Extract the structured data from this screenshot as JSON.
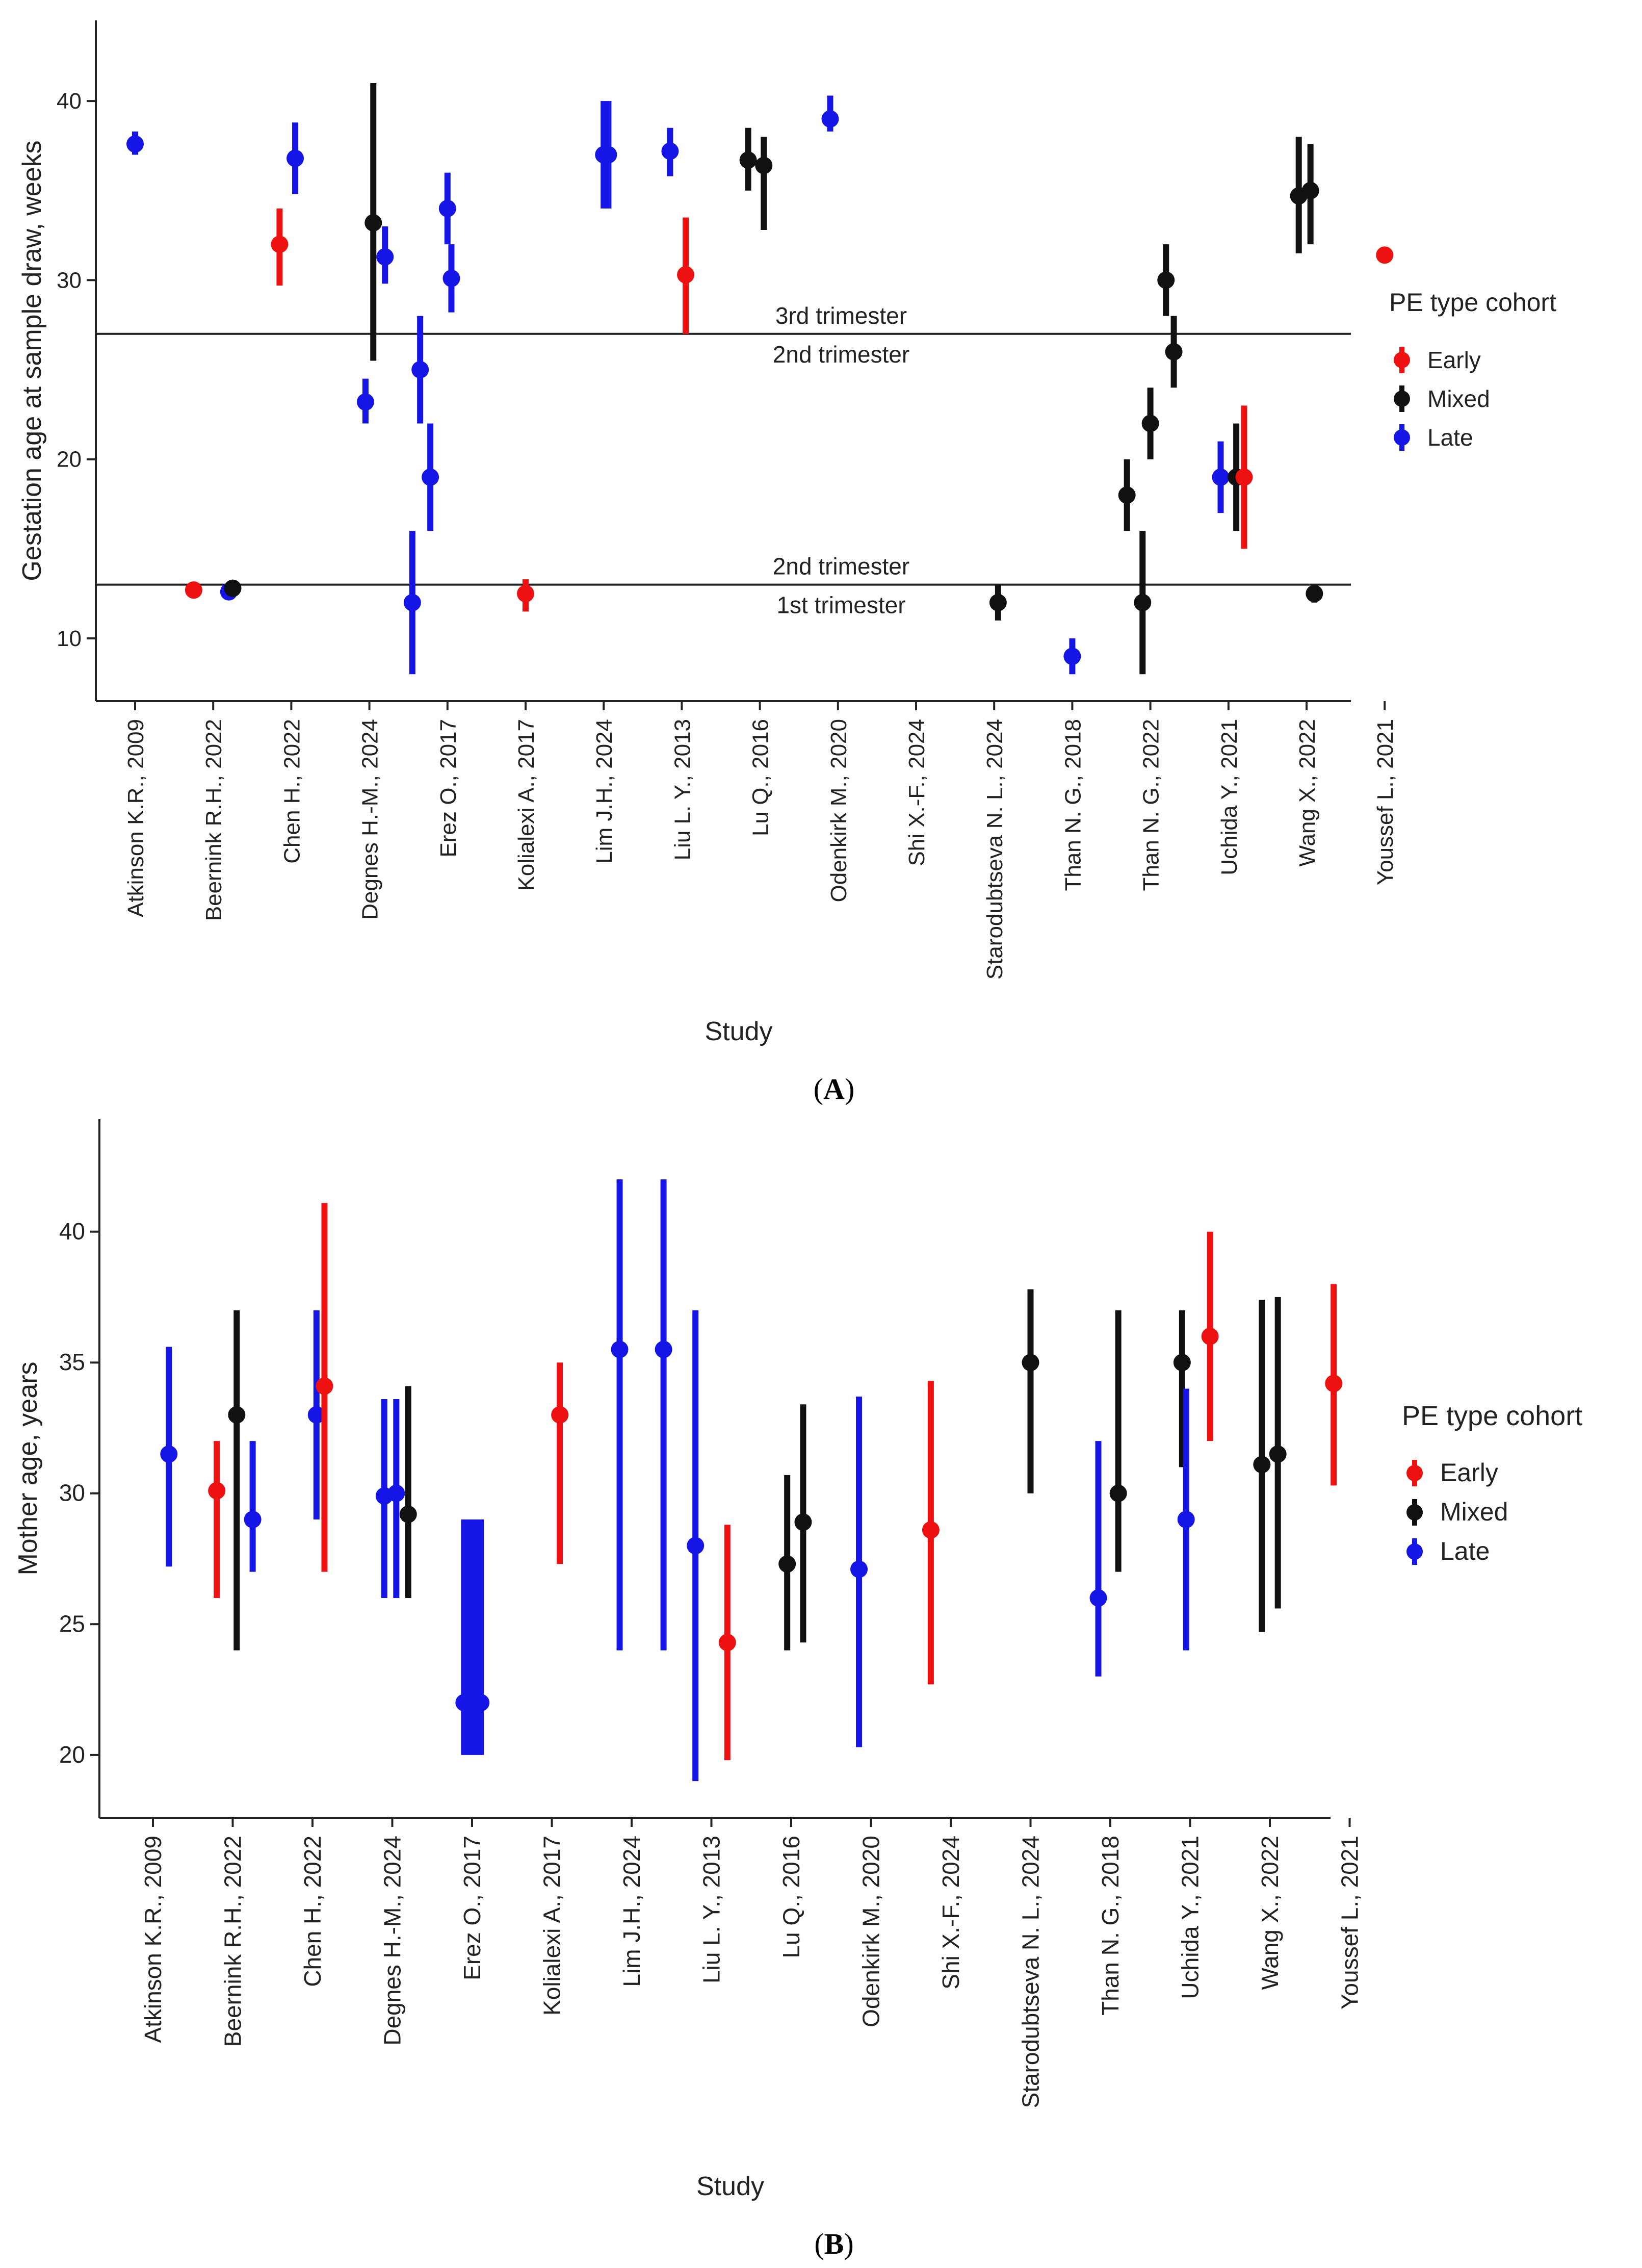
{
  "colors": {
    "Early": "#ee1111",
    "Mixed": "#111111",
    "Late": "#1515e6"
  },
  "chart_data": [
    {
      "type": "scatter",
      "panel_label": "A",
      "ylabel": "Gestation age at sample draw, weeks",
      "xlabel": "Study",
      "ylim": [
        6.5,
        44.5
      ],
      "yticks": [
        10,
        20,
        30,
        40
      ],
      "categories": [
        "Atkinson K.R., 2009",
        "Beernink R.H., 2022",
        "Chen H., 2022",
        "Degnes H.-M., 2024",
        "Erez O., 2017",
        "Kolialexi A., 2017",
        "Lim J.H., 2024",
        "Liu L. Y., 2013",
        "Lu Q., 2016",
        "Odenkirk M., 2020",
        "Shi X.-F., 2024",
        "Starodubtseva N. L., 2024",
        "Than N. G., 2018",
        "Than N. G., 2022",
        "Uchida Y., 2021",
        "Wang X., 2022",
        "Youssef L., 2021"
      ],
      "legend": {
        "title": "PE type cohort",
        "entries": [
          "Early",
          "Mixed",
          "Late"
        ],
        "placement": "right"
      },
      "reference_lines": [
        {
          "y": 27,
          "label_above": "3rd trimester",
          "label_below": "2nd trimester"
        },
        {
          "y": 13,
          "label_above": "2nd trimester",
          "label_below": "1st trimester"
        }
      ],
      "points": [
        {
          "study": 0,
          "offset": 0,
          "cohort": "Late",
          "y": 37.6,
          "lo": 37.0,
          "hi": 38.3
        },
        {
          "study": 1,
          "offset": -0.25,
          "cohort": "Early",
          "y": 12.7,
          "lo": 12.7,
          "hi": 12.7
        },
        {
          "study": 1,
          "offset": 0.2,
          "cohort": "Late",
          "y": 12.6,
          "lo": 12.6,
          "hi": 12.6
        },
        {
          "study": 1,
          "offset": 0.25,
          "cohort": "Mixed",
          "y": 12.8,
          "lo": 12.8,
          "hi": 12.8
        },
        {
          "study": 2,
          "offset": -0.15,
          "cohort": "Early",
          "y": 32.0,
          "lo": 29.7,
          "hi": 34.0
        },
        {
          "study": 2,
          "offset": 0.05,
          "cohort": "Late",
          "y": 36.8,
          "lo": 34.8,
          "hi": 38.8
        },
        {
          "study": 3,
          "offset": -0.05,
          "cohort": "Late",
          "y": 23.2,
          "lo": 22.0,
          "hi": 24.5
        },
        {
          "study": 3,
          "offset": 0.05,
          "cohort": "Mixed",
          "y": 33.2,
          "lo": 25.5,
          "hi": 41.0
        },
        {
          "study": 3,
          "offset": 0.2,
          "cohort": "Late",
          "y": 31.3,
          "lo": 29.8,
          "hi": 33.0
        },
        {
          "study": 4,
          "offset": -0.45,
          "cohort": "Late",
          "y": 12.0,
          "lo": 8.0,
          "hi": 16.0
        },
        {
          "study": 4,
          "offset": -0.35,
          "cohort": "Late",
          "y": 25.0,
          "lo": 22.0,
          "hi": 28.0
        },
        {
          "study": 4,
          "offset": -0.22,
          "cohort": "Late",
          "y": 19.0,
          "lo": 16.0,
          "hi": 22.0
        },
        {
          "study": 4,
          "offset": 0.0,
          "cohort": "Late",
          "y": 34.0,
          "lo": 32.0,
          "hi": 36.0
        },
        {
          "study": 4,
          "offset": 0.05,
          "cohort": "Late",
          "y": 30.1,
          "lo": 28.2,
          "hi": 32.0
        },
        {
          "study": 5,
          "offset": 0,
          "cohort": "Early",
          "y": 12.5,
          "lo": 11.5,
          "hi": 13.3
        },
        {
          "study": 6,
          "offset": 0,
          "cohort": "Late",
          "y": 37.0,
          "lo": 34.0,
          "hi": 40.0
        },
        {
          "study": 6,
          "offset": 0.06,
          "cohort": "Late",
          "y": 37.0,
          "lo": 34.0,
          "hi": 40.0
        },
        {
          "study": 7,
          "offset": -0.15,
          "cohort": "Late",
          "y": 37.2,
          "lo": 35.8,
          "hi": 38.5
        },
        {
          "study": 7,
          "offset": 0.05,
          "cohort": "Early",
          "y": 30.3,
          "lo": 27.0,
          "hi": 33.5
        },
        {
          "study": 8,
          "offset": -0.15,
          "cohort": "Mixed",
          "y": 36.7,
          "lo": 35.0,
          "hi": 38.5
        },
        {
          "study": 8,
          "offset": 0.05,
          "cohort": "Mixed",
          "y": 36.4,
          "lo": 32.8,
          "hi": 38.0
        },
        {
          "study": 9,
          "offset": -0.1,
          "cohort": "Late",
          "y": 39.0,
          "lo": 38.3,
          "hi": 40.3
        },
        {
          "study": 11,
          "offset": 0.05,
          "cohort": "Mixed",
          "y": 12.0,
          "lo": 11.0,
          "hi": 13.0
        },
        {
          "study": 12,
          "offset": 0,
          "cohort": "Late",
          "y": 9.0,
          "lo": 8.0,
          "hi": 10.0
        },
        {
          "study": 13,
          "offset": -0.3,
          "cohort": "Mixed",
          "y": 18.0,
          "lo": 16.0,
          "hi": 20.0
        },
        {
          "study": 13,
          "offset": -0.1,
          "cohort": "Mixed",
          "y": 12.0,
          "lo": 8.0,
          "hi": 16.0
        },
        {
          "study": 13,
          "offset": 0.0,
          "cohort": "Mixed",
          "y": 22.0,
          "lo": 20.0,
          "hi": 24.0
        },
        {
          "study": 13,
          "offset": 0.2,
          "cohort": "Mixed",
          "y": 30.0,
          "lo": 28.0,
          "hi": 32.0
        },
        {
          "study": 13,
          "offset": 0.3,
          "cohort": "Mixed",
          "y": 26.0,
          "lo": 24.0,
          "hi": 28.0
        },
        {
          "study": 14,
          "offset": -0.1,
          "cohort": "Late",
          "y": 19.0,
          "lo": 17.0,
          "hi": 21.0
        },
        {
          "study": 14,
          "offset": 0.1,
          "cohort": "Mixed",
          "y": 19.0,
          "lo": 16.0,
          "hi": 22.0
        },
        {
          "study": 14,
          "offset": 0.2,
          "cohort": "Early",
          "y": 19.0,
          "lo": 15.0,
          "hi": 23.0
        },
        {
          "study": 15,
          "offset": -0.1,
          "cohort": "Mixed",
          "y": 34.7,
          "lo": 31.5,
          "hi": 38.0
        },
        {
          "study": 15,
          "offset": 0.05,
          "cohort": "Mixed",
          "y": 35.0,
          "lo": 32.0,
          "hi": 37.6
        },
        {
          "study": 15,
          "offset": 0.1,
          "cohort": "Mixed",
          "y": 12.5,
          "lo": 12.0,
          "hi": 13.0
        },
        {
          "study": 16,
          "offset": 0,
          "cohort": "Early",
          "y": 31.4,
          "lo": 31.4,
          "hi": 31.4
        }
      ]
    },
    {
      "type": "scatter",
      "panel_label": "B",
      "ylabel": "Mother age, years",
      "xlabel": "Study",
      "ylim": [
        17.6,
        44.3
      ],
      "yticks": [
        20,
        25,
        30,
        35,
        40
      ],
      "categories": [
        "Atkinson K.R., 2009",
        "Beernink R.H., 2022",
        "Chen H., 2022",
        "Degnes H.-M., 2024",
        "Erez O., 2017",
        "Kolialexi A., 2017",
        "Lim J.H., 2024",
        "Liu L. Y., 2013",
        "Lu Q., 2016",
        "Odenkirk M., 2020",
        "Shi X.-F., 2024",
        "Starodubtseva N. L., 2024",
        "Than N. G., 2018",
        "Uchida Y., 2021",
        "Wang X., 2022",
        "Youssef L., 2021"
      ],
      "legend": {
        "title": "PE type cohort",
        "entries": [
          "Early",
          "Mixed",
          "Late"
        ],
        "placement": "right"
      },
      "reference_lines": [],
      "points": [
        {
          "study": 0,
          "offset": 0.2,
          "cohort": "Late",
          "y": 31.5,
          "lo": 27.2,
          "hi": 35.6
        },
        {
          "study": 1,
          "offset": -0.2,
          "cohort": "Early",
          "y": 30.1,
          "lo": 26.0,
          "hi": 32.0
        },
        {
          "study": 1,
          "offset": 0.05,
          "cohort": "Mixed",
          "y": 33.0,
          "lo": 24.0,
          "hi": 37.0
        },
        {
          "study": 1,
          "offset": 0.25,
          "cohort": "Late",
          "y": 29.0,
          "lo": 27.0,
          "hi": 32.0
        },
        {
          "study": 2,
          "offset": 0.05,
          "cohort": "Late",
          "y": 33.0,
          "lo": 29.0,
          "hi": 37.0
        },
        {
          "study": 2,
          "offset": 0.15,
          "cohort": "Early",
          "y": 34.1,
          "lo": 27.0,
          "hi": 41.1
        },
        {
          "study": 3,
          "offset": -0.1,
          "cohort": "Late",
          "y": 29.9,
          "lo": 26.0,
          "hi": 33.6
        },
        {
          "study": 3,
          "offset": 0.05,
          "cohort": "Late",
          "y": 30.0,
          "lo": 26.0,
          "hi": 33.6
        },
        {
          "study": 3,
          "offset": 0.2,
          "cohort": "Mixed",
          "y": 29.2,
          "lo": 26.0,
          "hi": 34.1
        },
        {
          "study": 4,
          "offset": -0.1,
          "cohort": "Late",
          "y": 22.0,
          "lo": 20.0,
          "hi": 29.0
        },
        {
          "study": 4,
          "offset": -0.03,
          "cohort": "Late",
          "y": 22.0,
          "lo": 20.0,
          "hi": 29.0
        },
        {
          "study": 4,
          "offset": 0.04,
          "cohort": "Late",
          "y": 22.0,
          "lo": 20.0,
          "hi": 29.0
        },
        {
          "study": 4,
          "offset": 0.11,
          "cohort": "Late",
          "y": 22.0,
          "lo": 20.0,
          "hi": 29.0
        },
        {
          "study": 5,
          "offset": 0.1,
          "cohort": "Early",
          "y": 33.0,
          "lo": 27.3,
          "hi": 35.0
        },
        {
          "study": 6,
          "offset": -0.15,
          "cohort": "Late",
          "y": 35.5,
          "lo": 24.0,
          "hi": 42.0
        },
        {
          "study": 6,
          "offset": 0.4,
          "cohort": "Late",
          "y": 35.5,
          "lo": 24.0,
          "hi": 42.0
        },
        {
          "study": 7,
          "offset": -0.2,
          "cohort": "Late",
          "y": 28.0,
          "lo": 19.0,
          "hi": 37.0
        },
        {
          "study": 7,
          "offset": 0.2,
          "cohort": "Early",
          "y": 24.3,
          "lo": 19.8,
          "hi": 28.8
        },
        {
          "study": 8,
          "offset": -0.05,
          "cohort": "Mixed",
          "y": 27.3,
          "lo": 24.0,
          "hi": 30.7
        },
        {
          "study": 8,
          "offset": 0.15,
          "cohort": "Mixed",
          "y": 28.9,
          "lo": 24.3,
          "hi": 33.4
        },
        {
          "study": 9,
          "offset": -0.15,
          "cohort": "Late",
          "y": 27.1,
          "lo": 20.3,
          "hi": 33.7
        },
        {
          "study": 10,
          "offset": -0.25,
          "cohort": "Early",
          "y": 28.6,
          "lo": 22.7,
          "hi": 34.3
        },
        {
          "study": 11,
          "offset": 0,
          "cohort": "Mixed",
          "y": 35.0,
          "lo": 30.0,
          "hi": 37.8
        },
        {
          "study": 12,
          "offset": -0.15,
          "cohort": "Late",
          "y": 26.0,
          "lo": 23.0,
          "hi": 32.0
        },
        {
          "study": 12,
          "offset": 0.1,
          "cohort": "Mixed",
          "y": 30.0,
          "lo": 27.0,
          "hi": 37.0
        },
        {
          "study": 13,
          "offset": -0.1,
          "cohort": "Mixed",
          "y": 35.0,
          "lo": 31.0,
          "hi": 37.0
        },
        {
          "study": 13,
          "offset": -0.05,
          "cohort": "Late",
          "y": 29.0,
          "lo": 24.0,
          "hi": 34.0
        },
        {
          "study": 13,
          "offset": 0.25,
          "cohort": "Early",
          "y": 36.0,
          "lo": 32.0,
          "hi": 40.0
        },
        {
          "study": 14,
          "offset": -0.1,
          "cohort": "Mixed",
          "y": 31.1,
          "lo": 24.7,
          "hi": 37.4
        },
        {
          "study": 14,
          "offset": 0.1,
          "cohort": "Mixed",
          "y": 31.5,
          "lo": 25.6,
          "hi": 37.5
        },
        {
          "study": 15,
          "offset": -0.2,
          "cohort": "Early",
          "y": 34.2,
          "lo": 30.3,
          "hi": 38.0
        }
      ]
    }
  ]
}
